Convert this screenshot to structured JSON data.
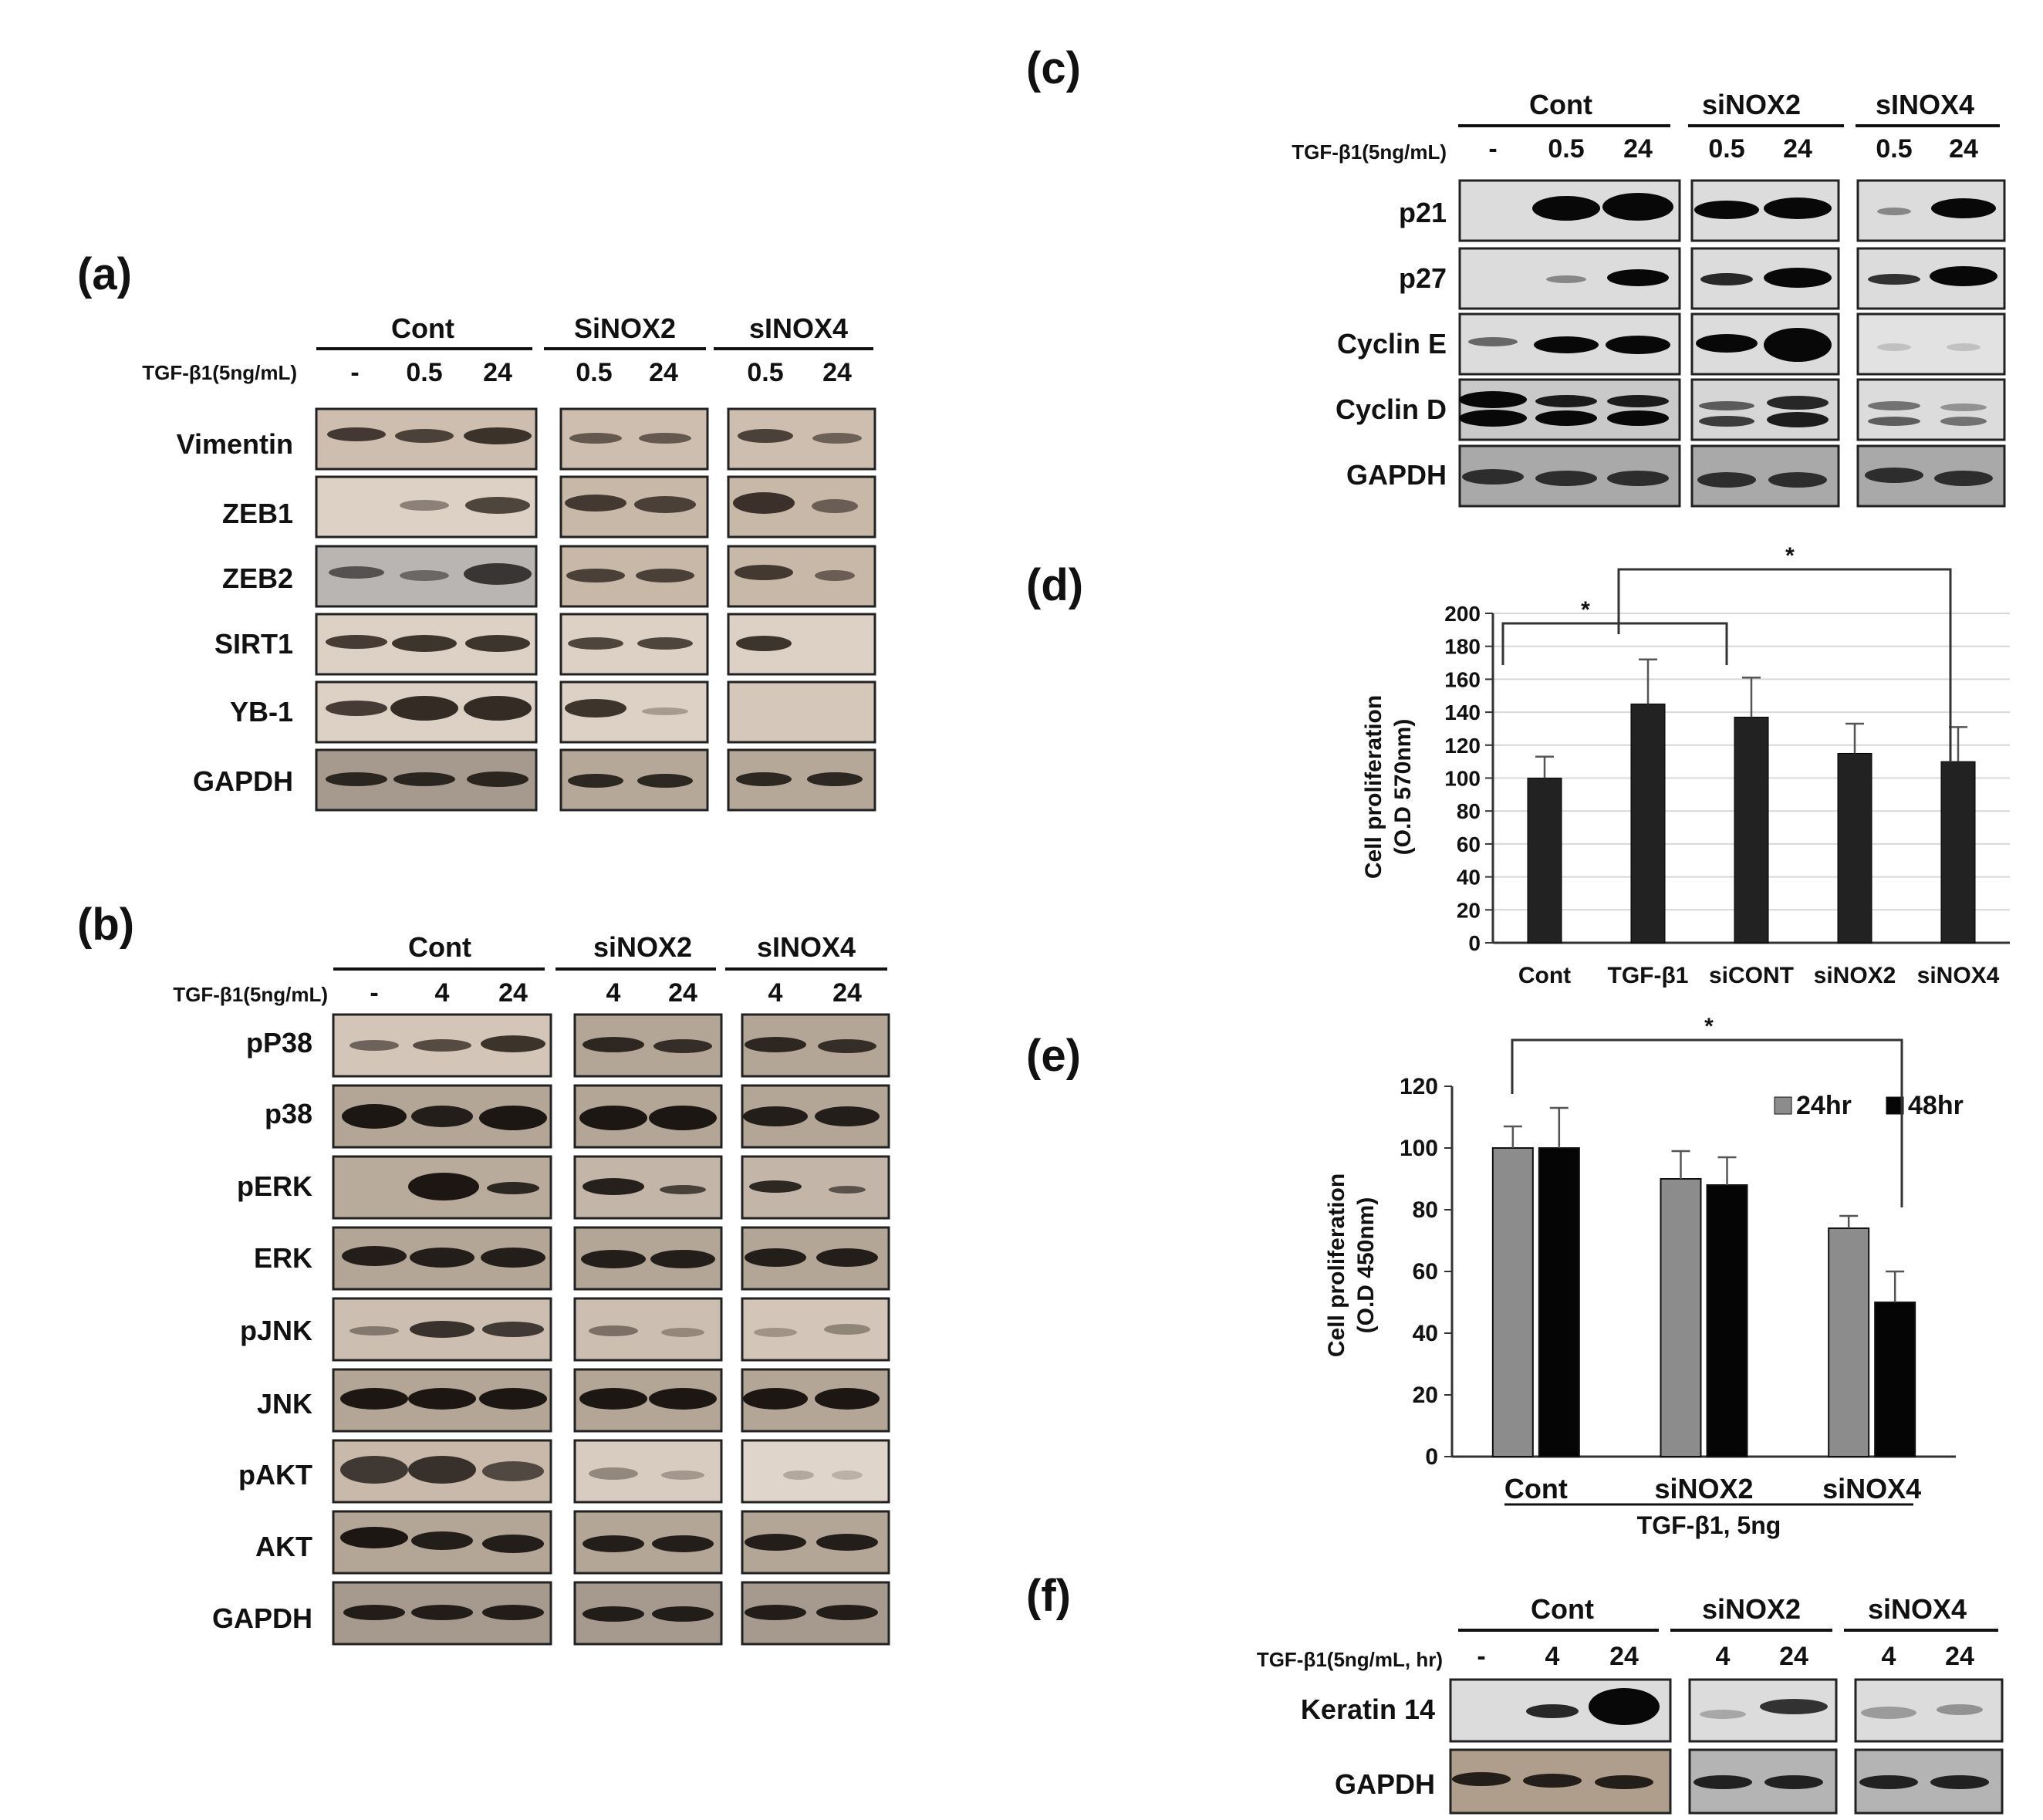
{
  "panel_a": {
    "letter": "(a)",
    "groups": [
      "Cont",
      "SiNOX2",
      "sINOX4"
    ],
    "treatment_label": "TGF-β1(5ng/mL)",
    "lanes": [
      "-",
      "0.5",
      "24",
      "0.5",
      "24",
      "0.5",
      "24"
    ],
    "rows": [
      "Vimentin",
      "ZEB1",
      "ZEB2",
      "SIRT1",
      "YB-1",
      "GAPDH"
    ]
  },
  "panel_b": {
    "letter": "(b)",
    "groups": [
      "Cont",
      "siNOX2",
      "sINOX4"
    ],
    "treatment_label": "TGF-β1(5ng/mL)",
    "lanes": [
      "-",
      "4",
      "24",
      "4",
      "24",
      "4",
      "24"
    ],
    "rows": [
      "pP38",
      "p38",
      "pERK",
      "ERK",
      "pJNK",
      "JNK",
      "pAKT",
      "AKT",
      "GAPDH"
    ]
  },
  "panel_c": {
    "letter": "(c)",
    "groups": [
      "Cont",
      "siNOX2",
      "sINOX4"
    ],
    "treatment_label": "TGF-β1(5ng/mL)",
    "lanes": [
      "-",
      "0.5",
      "24",
      "0.5",
      "24",
      "0.5",
      "24"
    ],
    "rows": [
      "p21",
      "p27",
      "Cyclin E",
      "Cyclin D",
      "GAPDH"
    ]
  },
  "panel_d": {
    "letter": "(d)",
    "significance": [
      "*",
      "*"
    ]
  },
  "panel_e": {
    "letter": "(e)",
    "significance": "*",
    "group_caption": "TGF-β1, 5ng"
  },
  "panel_f": {
    "letter": "(f)",
    "groups": [
      "Cont",
      "siNOX2",
      "siNOX4"
    ],
    "treatment_label": "TGF-β1(5ng/mL, hr)",
    "lanes": [
      "-",
      "4",
      "24",
      "4",
      "24",
      "4",
      "24"
    ],
    "rows": [
      "Keratin 14",
      "GAPDH"
    ]
  },
  "chart_data": [
    {
      "type": "bar",
      "panel": "(d)",
      "categories": [
        "Cont",
        "TGF-β1",
        "siCONT",
        "siNOX2",
        "siNOX4"
      ],
      "values": [
        100,
        145,
        137,
        115,
        110
      ],
      "errors": [
        13,
        27,
        24,
        18,
        21
      ],
      "ylabel_line1": "Cell proliferation",
      "ylabel_line2": "(O.D 570nm)",
      "ylim": [
        0,
        200
      ],
      "yticks": [
        0,
        20,
        40,
        60,
        80,
        100,
        120,
        140,
        160,
        180,
        200
      ],
      "grid": true,
      "color": "#222222"
    },
    {
      "type": "bar",
      "panel": "(e)",
      "categories": [
        "Cont",
        "siNOX2",
        "siNOX4"
      ],
      "series": [
        {
          "name": "24hr",
          "values": [
            100,
            90,
            74
          ],
          "errors": [
            7,
            9,
            4
          ],
          "color": "#8c8c8c"
        },
        {
          "name": "48hr",
          "values": [
            100,
            88,
            50
          ],
          "errors": [
            13,
            9,
            10
          ],
          "color": "#050505"
        }
      ],
      "ylabel_line1": "Cell proliferation",
      "ylabel_line2": "(O.D 450nm)",
      "ylim": [
        0,
        120
      ],
      "yticks": [
        0,
        20,
        40,
        60,
        80,
        100,
        120
      ],
      "grid": false,
      "legend": "top-right"
    }
  ]
}
